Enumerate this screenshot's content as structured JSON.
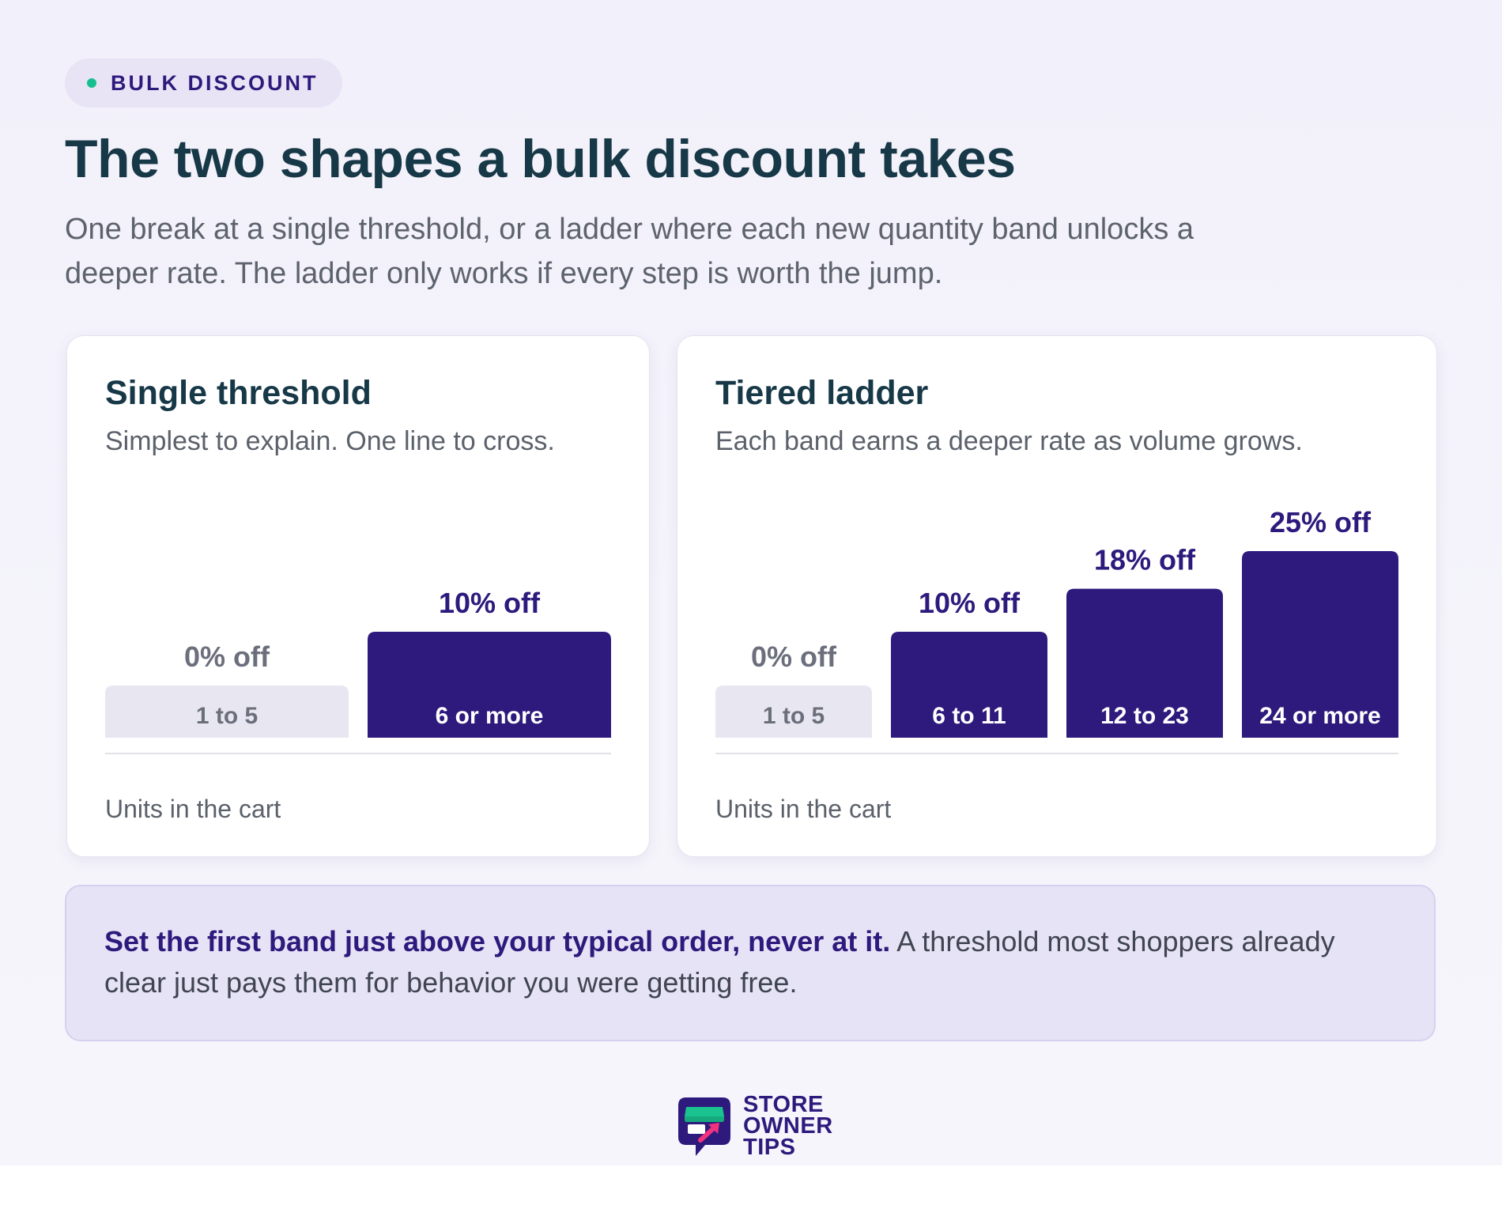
{
  "eyebrow": "BULK DISCOUNT",
  "title": "The two shapes a bulk discount takes",
  "subtitle": "One break at a single threshold, or a ladder where each new quantity band unlocks a deeper rate. The ladder only works if every step is worth the jump.",
  "callout": {
    "bold": "Set the first band just above your typical order, never at it.",
    "rest": " A threshold most shoppers already clear just pays them for behavior you were getting free."
  },
  "brand": {
    "line1": "STORE",
    "line2": "OWNER",
    "line3": "TIPS",
    "logo": "storefront-arrow-icon"
  },
  "colors": {
    "accent": "#2d1a7c",
    "neutral_bar": "#e8e6f1",
    "dot": "#16c08e"
  },
  "chart_data": [
    {
      "type": "bar",
      "title": "Single threshold",
      "subtitle": "Simplest to explain. One line to cross.",
      "xlabel": "Units in the cart",
      "categories": [
        "1 to 5",
        "6 or more"
      ],
      "values": [
        0,
        10
      ],
      "value_labels": [
        "0% off",
        "10% off"
      ],
      "unit": "% off"
    },
    {
      "type": "bar",
      "title": "Tiered ladder",
      "subtitle": "Each band earns a deeper rate as volume grows.",
      "xlabel": "Units in the cart",
      "categories": [
        "1 to 5",
        "6 to 11",
        "12 to 23",
        "24 or more"
      ],
      "values": [
        0,
        10,
        18,
        25
      ],
      "value_labels": [
        "0% off",
        "10% off",
        "18% off",
        "25% off"
      ],
      "unit": "% off"
    }
  ]
}
